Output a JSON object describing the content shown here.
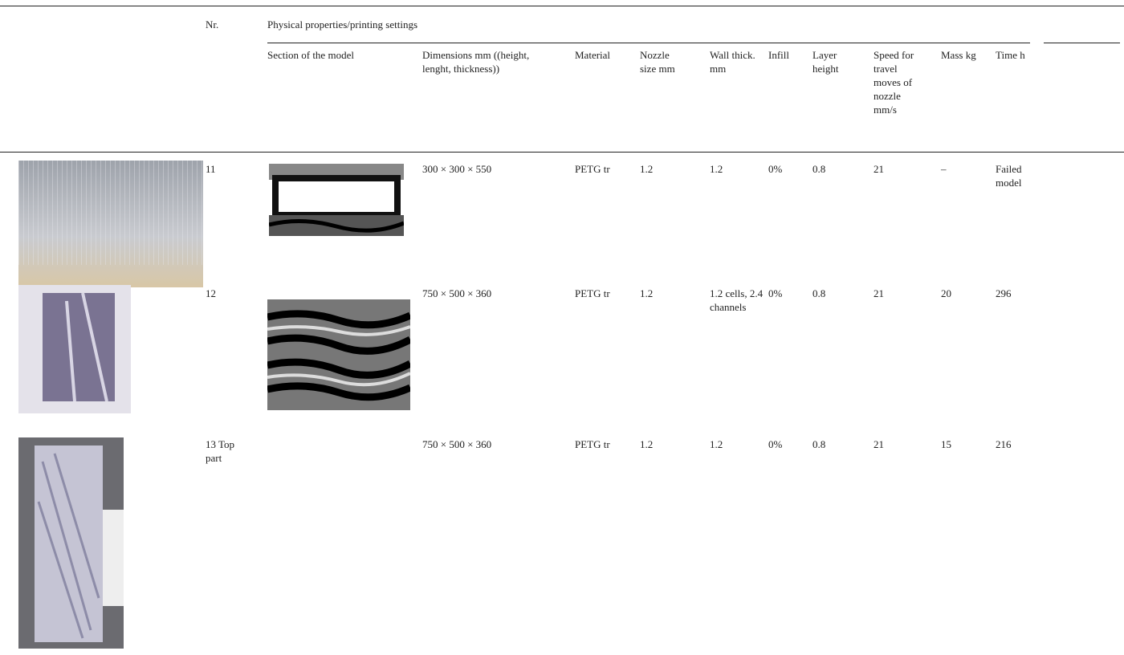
{
  "header": {
    "nr": "Nr.",
    "group": "Physical properties/printing settings",
    "columns": [
      "Section of the model",
      "Dimensions mm ((height, lenght, thickness))",
      "Material",
      "Nozzle size mm",
      "Wall thick. mm",
      "Infill",
      "Layer height",
      "Speed for travel moves of nozzle mm/s",
      "Mass kg",
      "Time h"
    ]
  },
  "rows": [
    [
      "11",
      "300 × 300 × 550",
      "PETG tr",
      "1.2",
      "1.2",
      "0%",
      "0.8",
      "21",
      "–",
      "Failed model"
    ],
    [
      "12",
      "750 × 500 × 360",
      "PETG tr",
      "1.2",
      "1.2 cells, 2.4 channels",
      "0%",
      "0.8",
      "21",
      "20",
      "296"
    ],
    [
      "13 Top part",
      "750 × 500 × 360",
      "PETG tr",
      "1.2",
      "1.2",
      "0%",
      "0.8",
      "21",
      "15",
      "216"
    ]
  ]
}
